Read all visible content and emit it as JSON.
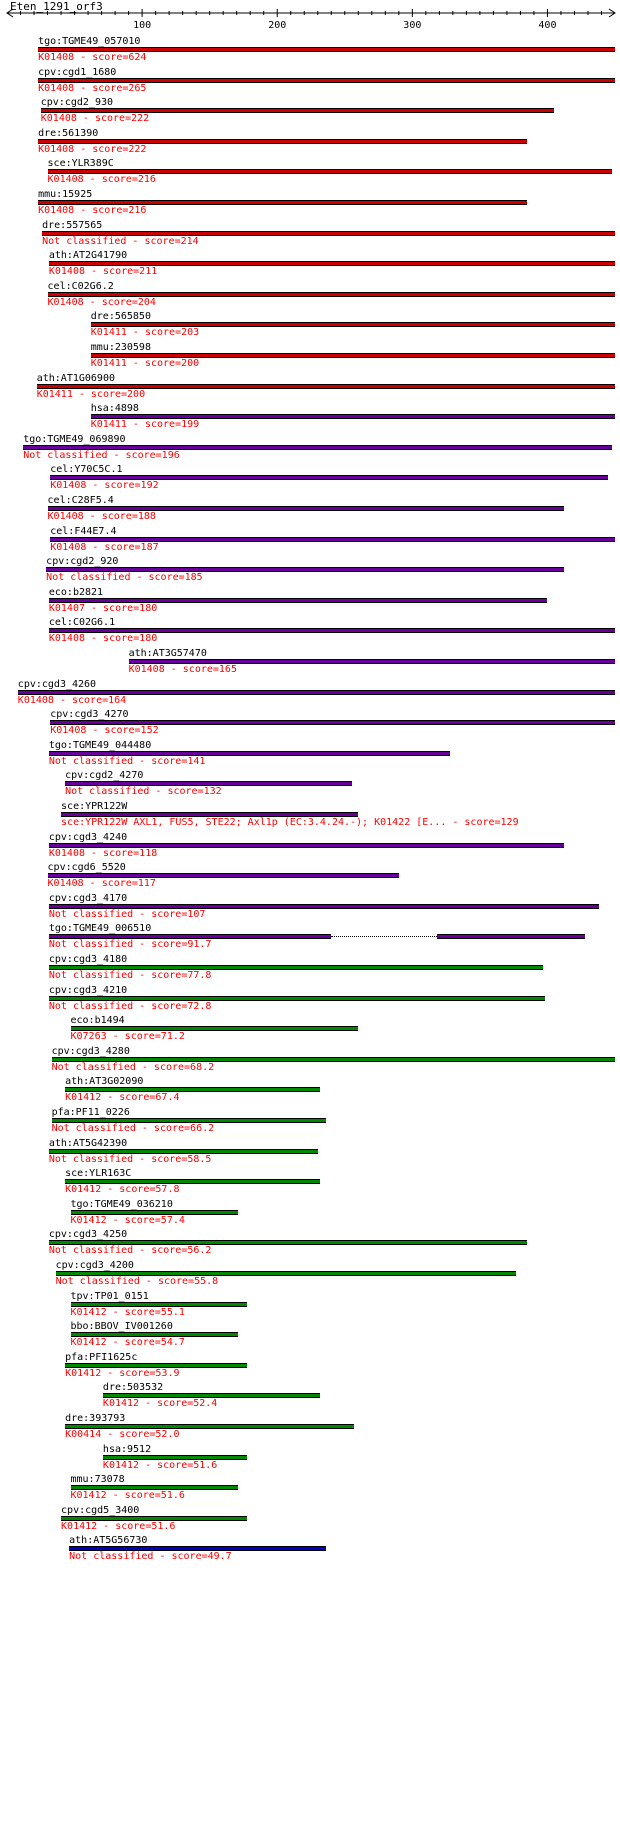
{
  "query_title": "Eten_1291_orf3",
  "ruler": {
    "min": 0,
    "max": 450,
    "ticks": [
      100,
      200,
      300,
      400
    ]
  },
  "colors": {
    "red": "#cc0000",
    "purple": "#660099",
    "green": "#008800",
    "blue": "#0000cc",
    "label_text": "#000000",
    "desc_text": "#ff0000"
  },
  "hits": [
    {
      "name": "tgo:TGME49_057010",
      "desc": "K01408 - score=624",
      "color": "red",
      "start": 23,
      "end": 450
    },
    {
      "name": "cpv:cgd1_1680",
      "desc": "K01408 - score=265",
      "color": "red",
      "start": 23,
      "end": 450
    },
    {
      "name": "cpv:cgd2_930",
      "desc": "K01408 - score=222",
      "color": "red",
      "start": 25,
      "end": 405
    },
    {
      "name": "dre:561390",
      "desc": "K01408 - score=222",
      "color": "red",
      "start": 23,
      "end": 385
    },
    {
      "name": "sce:YLR389C",
      "desc": "K01408 - score=216",
      "color": "red",
      "start": 30,
      "end": 448
    },
    {
      "name": "mmu:15925",
      "desc": "K01408 - score=216",
      "color": "red",
      "start": 23,
      "end": 385
    },
    {
      "name": "dre:557565",
      "desc": "Not classified - score=214",
      "color": "red",
      "start": 26,
      "end": 450
    },
    {
      "name": "ath:AT2G41790",
      "desc": "K01408 - score=211",
      "color": "red",
      "start": 31,
      "end": 450
    },
    {
      "name": "cel:C02G6.2",
      "desc": "K01408 - score=204",
      "color": "red",
      "start": 30,
      "end": 450
    },
    {
      "name": "dre:565850",
      "desc": "K01411 - score=203",
      "color": "red",
      "start": 62,
      "end": 450
    },
    {
      "name": "mmu:230598",
      "desc": "K01411 - score=200",
      "color": "red",
      "start": 62,
      "end": 450
    },
    {
      "name": "ath:AT1G06900",
      "desc": "K01411 - score=200",
      "color": "red",
      "start": 22,
      "end": 450
    },
    {
      "name": "hsa:4898",
      "desc": "K01411 - score=199",
      "color": "purple",
      "start": 62,
      "end": 450
    },
    {
      "name": "tgo:TGME49_069890",
      "desc": "Not classified - score=196",
      "color": "purple",
      "start": 12,
      "end": 448
    },
    {
      "name": "cel:Y70C5C.1",
      "desc": "K01408 - score=192",
      "color": "purple",
      "start": 32,
      "end": 445
    },
    {
      "name": "cel:C28F5.4",
      "desc": "K01408 - score=188",
      "color": "purple",
      "start": 30,
      "end": 412
    },
    {
      "name": "cel:F44E7.4",
      "desc": "K01408 - score=187",
      "color": "purple",
      "start": 32,
      "end": 450
    },
    {
      "name": "cpv:cgd2_920",
      "desc": "Not classified - score=185",
      "color": "purple",
      "start": 29,
      "end": 412
    },
    {
      "name": "eco:b2821",
      "desc": "K01407 - score=180",
      "color": "purple",
      "start": 31,
      "end": 400
    },
    {
      "name": "cel:C02G6.1",
      "desc": "K01408 - score=180",
      "color": "purple",
      "start": 31,
      "end": 450
    },
    {
      "name": "ath:AT3G57470",
      "desc": "K01408 - score=165",
      "color": "purple",
      "start": 90,
      "end": 450
    },
    {
      "name": "cpv:cgd3_4260",
      "desc": "K01408 - score=164",
      "color": "purple",
      "start": 8,
      "end": 450
    },
    {
      "name": "cpv:cgd3_4270",
      "desc": "K01408 - score=152",
      "color": "purple",
      "start": 32,
      "end": 450
    },
    {
      "name": "tgo:TGME49_044480",
      "desc": "Not classified - score=141",
      "color": "purple",
      "start": 31,
      "end": 328
    },
    {
      "name": "cpv:cgd2_4270",
      "desc": "Not classified - score=132",
      "color": "purple",
      "start": 43,
      "end": 255
    },
    {
      "name": "sce:YPR122W",
      "desc": "sce:YPR122W  AXL1, FUS5, STE22; Axl1p (EC:3.4.24.-); K01422  [E... - score=129",
      "color": "purple",
      "start": 40,
      "end": 260
    },
    {
      "name": "cpv:cgd3_4240",
      "desc": "K01408 - score=118",
      "color": "purple",
      "start": 31,
      "end": 412
    },
    {
      "name": "cpv:cgd6_5520",
      "desc": "K01408 - score=117",
      "color": "purple",
      "start": 30,
      "end": 290
    },
    {
      "name": "cpv:cgd3_4170",
      "desc": "Not classified - score=107",
      "color": "purple",
      "start": 31,
      "end": 438
    },
    {
      "name": "tgo:TGME49_006510",
      "desc": "Not classified - score=91.7",
      "color": "purple",
      "start": 31,
      "end": 428,
      "gap_start": 240,
      "gap_end": 318
    },
    {
      "name": "cpv:cgd3_4180",
      "desc": "Not classified - score=77.8",
      "color": "green",
      "start": 31,
      "end": 397
    },
    {
      "name": "cpv:cgd3_4210",
      "desc": "Not classified - score=72.8",
      "color": "green",
      "start": 31,
      "end": 398
    },
    {
      "name": "eco:b1494",
      "desc": "K07263 - score=71.2",
      "color": "green",
      "start": 47,
      "end": 260
    },
    {
      "name": "cpv:cgd3_4280",
      "desc": "Not classified - score=68.2",
      "color": "green",
      "start": 33,
      "end": 450
    },
    {
      "name": "ath:AT3G02090",
      "desc": "K01412 - score=67.4",
      "color": "green",
      "start": 43,
      "end": 232
    },
    {
      "name": "pfa:PF11_0226",
      "desc": "Not classified - score=66.2",
      "color": "green",
      "start": 33,
      "end": 236
    },
    {
      "name": "ath:AT5G42390",
      "desc": "Not classified - score=58.5",
      "color": "green",
      "start": 31,
      "end": 230
    },
    {
      "name": "sce:YLR163C",
      "desc": "K01412 - score=57.8",
      "color": "green",
      "start": 43,
      "end": 232
    },
    {
      "name": "tgo:TGME49_036210",
      "desc": "K01412 - score=57.4",
      "color": "green",
      "start": 47,
      "end": 171
    },
    {
      "name": "cpv:cgd3_4250",
      "desc": "Not classified - score=56.2",
      "color": "green",
      "start": 31,
      "end": 385
    },
    {
      "name": "cpv:cgd3_4200",
      "desc": "Not classified - score=55.8",
      "color": "green",
      "start": 36,
      "end": 377
    },
    {
      "name": "tpv:TP01_0151",
      "desc": "K01412 - score=55.1",
      "color": "green",
      "start": 47,
      "end": 178
    },
    {
      "name": "bbo:BBOV_IV001260",
      "desc": "K01412 - score=54.7",
      "color": "green",
      "start": 47,
      "end": 171
    },
    {
      "name": "pfa:PFI1625c",
      "desc": "K01412 - score=53.9",
      "color": "green",
      "start": 43,
      "end": 178
    },
    {
      "name": "dre:503532",
      "desc": "K01412 - score=52.4",
      "color": "green",
      "start": 71,
      "end": 232
    },
    {
      "name": "dre:393793",
      "desc": "K00414 - score=52.0",
      "color": "green",
      "start": 43,
      "end": 257
    },
    {
      "name": "hsa:9512",
      "desc": "K01412 - score=51.6",
      "color": "green",
      "start": 71,
      "end": 178
    },
    {
      "name": "mmu:73078",
      "desc": "K01412 - score=51.6",
      "color": "green",
      "start": 47,
      "end": 171
    },
    {
      "name": "cpv:cgd5_3400",
      "desc": "K01412 - score=51.6",
      "color": "green",
      "start": 40,
      "end": 178
    },
    {
      "name": "ath:AT5G56730",
      "desc": "Not classified - score=49.7",
      "color": "blue",
      "start": 46,
      "end": 236
    }
  ]
}
